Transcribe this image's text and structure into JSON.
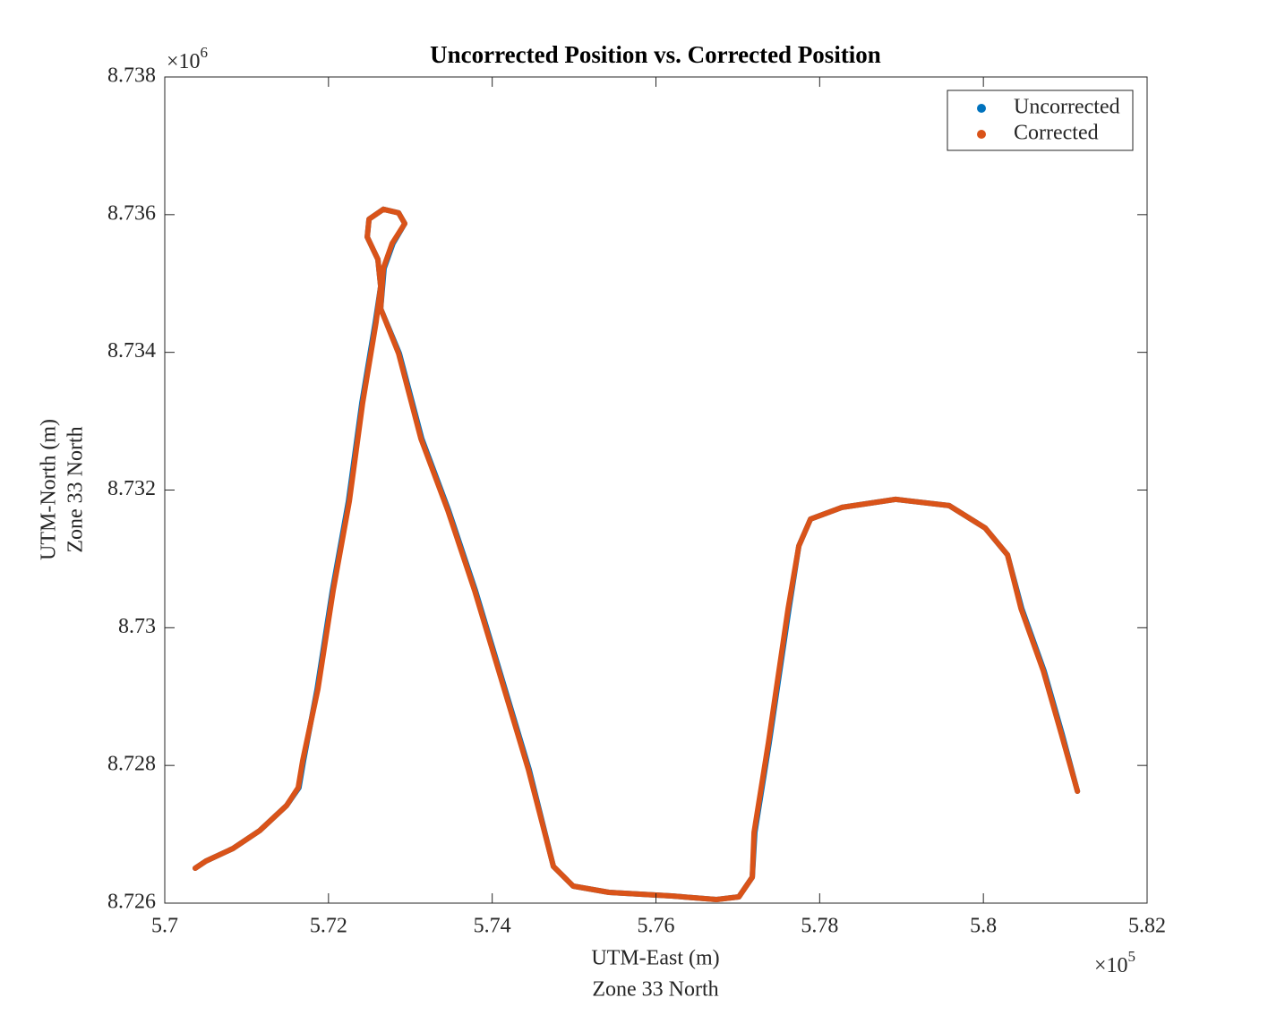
{
  "chart_data": {
    "type": "line",
    "title": "Uncorrected Position vs. Corrected Position",
    "xlabel": [
      "UTM-East (m)",
      "Zone 33 North"
    ],
    "ylabel": [
      "UTM-North (m)",
      "Zone 33 North"
    ],
    "x_multiplier": {
      "base": "×10",
      "power": "5"
    },
    "y_multiplier": {
      "base": "×10",
      "power": "6"
    },
    "xlim": [
      570000,
      582000
    ],
    "ylim": [
      8726000,
      8738000
    ],
    "xticks": [
      {
        "value": 570000,
        "label": "5.7"
      },
      {
        "value": 572000,
        "label": "5.72"
      },
      {
        "value": 574000,
        "label": "5.74"
      },
      {
        "value": 576000,
        "label": "5.76"
      },
      {
        "value": 578000,
        "label": "5.78"
      },
      {
        "value": 580000,
        "label": "5.8"
      },
      {
        "value": 582000,
        "label": "5.82"
      }
    ],
    "yticks": [
      {
        "value": 8726000,
        "label": "8.726"
      },
      {
        "value": 8728000,
        "label": "8.728"
      },
      {
        "value": 8730000,
        "label": "8.73"
      },
      {
        "value": 8732000,
        "label": "8.732"
      },
      {
        "value": 8734000,
        "label": "8.734"
      },
      {
        "value": 8736000,
        "label": "8.736"
      },
      {
        "value": 8738000,
        "label": "8.738"
      }
    ],
    "legend": "upper right",
    "series": [
      {
        "name": "Uncorrected",
        "color": "#0072BD",
        "x": [
          570372,
          570503,
          570832,
          571160,
          571488,
          571640,
          571695,
          571861,
          572047,
          572244,
          572408,
          572572,
          572637,
          572604,
          572473,
          572495,
          572670,
          572856,
          572932,
          572789,
          572680,
          572637,
          572866,
          573139,
          573467,
          573796,
          574124,
          574452,
          574748,
          574989,
          575427,
          576193,
          576740,
          577013,
          577177,
          577209,
          577384,
          577625,
          577746,
          577888,
          578271,
          578928,
          579584,
          580022,
          580295,
          580470,
          580743,
          580962,
          581149
        ],
        "y": [
          8726507,
          8726611,
          8726793,
          8727053,
          8727417,
          8727677,
          8728068,
          8729108,
          8730538,
          8731839,
          8733269,
          8734440,
          8734960,
          8735350,
          8735675,
          8735935,
          8736078,
          8736026,
          8735870,
          8735584,
          8735220,
          8734635,
          8733984,
          8732749,
          8731709,
          8730538,
          8729238,
          8727938,
          8726533,
          8726247,
          8726156,
          8726104,
          8726052,
          8726091,
          8726377,
          8727027,
          8728328,
          8730278,
          8731189,
          8731579,
          8731748,
          8731865,
          8731774,
          8731449,
          8731059,
          8730278,
          8729368,
          8728458,
          8727625
        ]
      },
      {
        "name": "Corrected",
        "color": "#D95319",
        "x": [
          570372,
          570503,
          570832,
          571160,
          571488,
          571630,
          571685,
          571871,
          572057,
          572254,
          572418,
          572582,
          572637,
          572604,
          572473,
          572495,
          572670,
          572856,
          572932,
          572779,
          572670,
          572637,
          572856,
          573129,
          573457,
          573786,
          574114,
          574442,
          574748,
          574989,
          575427,
          576193,
          576740,
          577013,
          577177,
          577199,
          577374,
          577615,
          577746,
          577888,
          578271,
          578928,
          579584,
          580022,
          580295,
          580460,
          580733,
          580952,
          581149
        ],
        "y": [
          8726507,
          8726611,
          8726793,
          8727053,
          8727417,
          8727677,
          8728068,
          8729108,
          8730538,
          8731839,
          8733269,
          8734440,
          8734960,
          8735350,
          8735675,
          8735935,
          8736078,
          8736026,
          8735870,
          8735584,
          8735220,
          8734635,
          8733984,
          8732749,
          8731709,
          8730538,
          8729238,
          8727938,
          8726533,
          8726247,
          8726156,
          8726104,
          8726052,
          8726091,
          8726377,
          8727027,
          8728328,
          8730278,
          8731189,
          8731579,
          8731748,
          8731865,
          8731774,
          8731449,
          8731059,
          8730278,
          8729368,
          8728458,
          8727625
        ]
      }
    ]
  }
}
